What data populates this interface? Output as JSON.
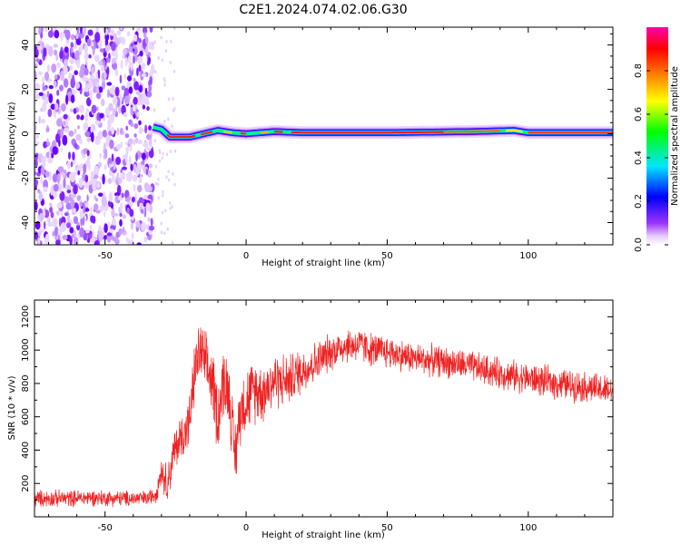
{
  "title": "C2E1.2024.074.02.06.G30",
  "chart_data": [
    {
      "type": "heatmap",
      "xlabel": "Height of straight line (km)",
      "ylabel": "Frequency (Hz)",
      "xlim": [
        -75,
        130
      ],
      "ylim": [
        -50,
        48
      ],
      "xticks": [
        -50,
        0,
        50,
        100
      ],
      "yticks": [
        -40,
        -20,
        0,
        20,
        40
      ],
      "colorbar": {
        "label": "Normalized spectral amplitude",
        "range": [
          0,
          1
        ],
        "ticks": [
          0.0,
          0.2,
          0.4,
          0.6,
          0.8
        ],
        "tick_labels": [
          "0.0",
          "0.2",
          "0.4",
          "0.6",
          "0.8"
        ],
        "colormap": [
          "#ffffff",
          "#d9b3ff",
          "#7f00ff",
          "#0000ff",
          "#00e5ff",
          "#00ff00",
          "#ffff00",
          "#ff8000",
          "#ff0000",
          "#ff00aa"
        ]
      },
      "noise_region": {
        "x": [
          -75,
          -33
        ],
        "frequency_range": [
          -50,
          48
        ],
        "amplitude": 0.05
      },
      "carrier_track": [
        {
          "x": -33,
          "f": 3
        },
        {
          "x": -30,
          "f": 2
        },
        {
          "x": -27,
          "f": -1.5
        },
        {
          "x": -20,
          "f": -1.5
        },
        {
          "x": -15,
          "f": 0
        },
        {
          "x": -10,
          "f": 1.5
        },
        {
          "x": -5,
          "f": 0.5
        },
        {
          "x": 0,
          "f": 0
        },
        {
          "x": 10,
          "f": 1
        },
        {
          "x": 20,
          "f": 0.5
        },
        {
          "x": 50,
          "f": 0.5
        },
        {
          "x": 80,
          "f": 1
        },
        {
          "x": 95,
          "f": 1.5
        },
        {
          "x": 100,
          "f": 0.5
        },
        {
          "x": 130,
          "f": 0.5
        }
      ]
    },
    {
      "type": "line",
      "xlabel": "Height of straight line (km)",
      "ylabel": "SNR (10 * v/v)",
      "xlim": [
        -75,
        130
      ],
      "ylim": [
        0,
        1300
      ],
      "xticks": [
        -50,
        0,
        50,
        100
      ],
      "yticks": [
        200,
        400,
        600,
        800,
        1000,
        1200
      ],
      "series": [
        {
          "color": "#ee2222",
          "points": [
            {
              "x": -75,
              "y": 110
            },
            {
              "x": -65,
              "y": 110
            },
            {
              "x": -55,
              "y": 115
            },
            {
              "x": -45,
              "y": 110
            },
            {
              "x": -35,
              "y": 110
            },
            {
              "x": -32,
              "y": 140
            },
            {
              "x": -30,
              "y": 280
            },
            {
              "x": -28,
              "y": 200
            },
            {
              "x": -25,
              "y": 420
            },
            {
              "x": -22,
              "y": 500
            },
            {
              "x": -20,
              "y": 580
            },
            {
              "x": -18,
              "y": 900
            },
            {
              "x": -16,
              "y": 1000
            },
            {
              "x": -14,
              "y": 880
            },
            {
              "x": -12,
              "y": 820
            },
            {
              "x": -10,
              "y": 600
            },
            {
              "x": -8,
              "y": 820
            },
            {
              "x": -6,
              "y": 750
            },
            {
              "x": -4,
              "y": 350
            },
            {
              "x": -2,
              "y": 650
            },
            {
              "x": 0,
              "y": 700
            },
            {
              "x": 3,
              "y": 760
            },
            {
              "x": 6,
              "y": 750
            },
            {
              "x": 10,
              "y": 820
            },
            {
              "x": 15,
              "y": 820
            },
            {
              "x": 20,
              "y": 880
            },
            {
              "x": 25,
              "y": 930
            },
            {
              "x": 30,
              "y": 990
            },
            {
              "x": 35,
              "y": 1030
            },
            {
              "x": 40,
              "y": 1030
            },
            {
              "x": 45,
              "y": 1000
            },
            {
              "x": 50,
              "y": 990
            },
            {
              "x": 55,
              "y": 970
            },
            {
              "x": 60,
              "y": 950
            },
            {
              "x": 70,
              "y": 930
            },
            {
              "x": 80,
              "y": 900
            },
            {
              "x": 90,
              "y": 860
            },
            {
              "x": 100,
              "y": 830
            },
            {
              "x": 110,
              "y": 800
            },
            {
              "x": 120,
              "y": 780
            },
            {
              "x": 130,
              "y": 750
            }
          ],
          "noise_amplitude": [
            {
              "x": -75,
              "a": 60
            },
            {
              "x": -33,
              "a": 55
            },
            {
              "x": -28,
              "a": 140
            },
            {
              "x": -10,
              "a": 260
            },
            {
              "x": 5,
              "a": 220
            },
            {
              "x": 15,
              "a": 180
            },
            {
              "x": 30,
              "a": 130
            },
            {
              "x": 60,
              "a": 110
            },
            {
              "x": 100,
              "a": 110
            },
            {
              "x": 130,
              "a": 110
            }
          ]
        }
      ]
    }
  ]
}
